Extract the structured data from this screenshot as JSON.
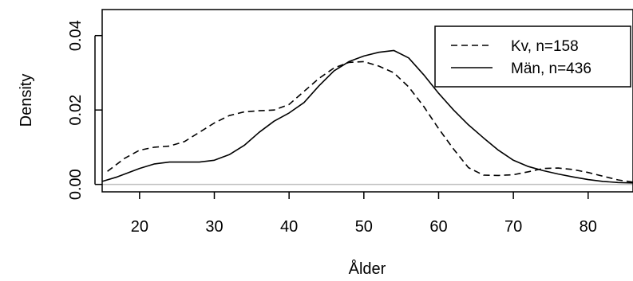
{
  "chart_data": {
    "type": "line",
    "title": "",
    "xlabel": "Ålder",
    "ylabel": "Density",
    "xlim": [
      15,
      86
    ],
    "ylim": [
      -0.002,
      0.047
    ],
    "x_ticks": [
      20,
      30,
      40,
      50,
      60,
      70,
      80
    ],
    "y_ticks": [
      0.0,
      0.02,
      0.04
    ],
    "y_tick_labels": [
      "0.00",
      "0.02",
      "0.04"
    ],
    "baseline": 0,
    "baseline_color": "#bebebe",
    "legend_position": "top-right",
    "series": [
      {
        "name": "Kv, n=158",
        "dash": "dashed",
        "x": [
          15.7,
          18,
          20,
          22,
          24,
          26,
          28,
          30,
          32,
          34,
          36,
          38,
          40,
          42,
          44,
          46,
          48,
          50,
          52,
          54,
          56,
          58,
          60,
          62,
          64,
          66,
          68,
          70,
          72,
          74,
          76,
          78,
          80,
          82,
          84,
          86
        ],
        "y": [
          0.0035,
          0.007,
          0.0092,
          0.01,
          0.0103,
          0.0115,
          0.014,
          0.0165,
          0.0185,
          0.0195,
          0.0198,
          0.02,
          0.0215,
          0.025,
          0.0285,
          0.0313,
          0.0328,
          0.033,
          0.0318,
          0.03,
          0.0262,
          0.021,
          0.015,
          0.0095,
          0.0045,
          0.0025,
          0.0024,
          0.0026,
          0.0034,
          0.0043,
          0.0044,
          0.004,
          0.0032,
          0.0022,
          0.0012,
          0.0006
        ]
      },
      {
        "name": "Män, n=436",
        "dash": "solid",
        "x": [
          15,
          17,
          20,
          22,
          24,
          26,
          28,
          30,
          32,
          34,
          36,
          38,
          40,
          42,
          44,
          46,
          48,
          50,
          52,
          54,
          56,
          58,
          60,
          62,
          64,
          66,
          68,
          70,
          72,
          74,
          76,
          78,
          80,
          82,
          84,
          86
        ],
        "y": [
          0.0008,
          0.002,
          0.0043,
          0.0055,
          0.006,
          0.006,
          0.006,
          0.0065,
          0.008,
          0.0105,
          0.014,
          0.017,
          0.0192,
          0.022,
          0.0265,
          0.0305,
          0.033,
          0.0345,
          0.0355,
          0.036,
          0.034,
          0.0295,
          0.0245,
          0.02,
          0.016,
          0.0125,
          0.0092,
          0.0065,
          0.0048,
          0.0037,
          0.0028,
          0.002,
          0.0013,
          0.0008,
          0.0005,
          0.0004
        ]
      }
    ]
  }
}
